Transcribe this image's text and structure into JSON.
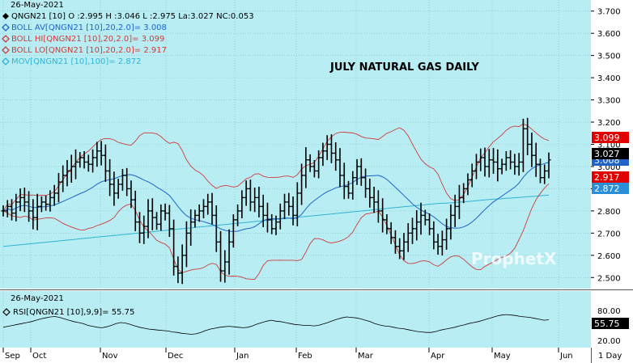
{
  "colors": {
    "background": "#b8eef3",
    "grid": "#7fbec6",
    "bars": "#000000",
    "boll_avg": "#1f63c9",
    "boll_bands": "#d03a3a",
    "mov100": "#2fb3d3",
    "rsi": "#000000",
    "tag_red": "#e00000",
    "tag_black": "#000000",
    "tag_blue": "#2a8fd8"
  },
  "header": {
    "date": "26-May-2021",
    "ohlc": "QNGN21 [10] O :2.995 H :3.046 L :2.975 La:3.027 NC:0.053",
    "boll_av": "BOLL AV[QNGN21 [10],20,2.0]= 3.008",
    "boll_hi": "BOLL HI[QNGN21 [10],20,2.0]= 3.099",
    "boll_lo": "BOLL LO[QNGN21 [10],20,2.0]= 2.917",
    "mov": "MOV[QNGN21 [10],100]= 2.872"
  },
  "chart_title": "JULY NATURAL GAS DAILY",
  "watermark": "ProphetX",
  "price_axis": [
    "3.700",
    "3.600",
    "3.500",
    "3.400",
    "3.300",
    "3.200",
    "3.100",
    "3.000",
    "2.900",
    "2.800",
    "2.700",
    "2.600",
    "2.500"
  ],
  "tags": {
    "boll_hi": "3.099",
    "last": "3.027",
    "boll_av": "3.008",
    "boll_lo": "2.917",
    "mov": "2.872"
  },
  "rsi_panel": {
    "date": "26-May-2021",
    "label": "RSI[QNGN21 [10],9,9]= 55.75",
    "axis": [
      "80.00",
      "20.00"
    ],
    "tag": "55.75"
  },
  "x_axis": {
    "months": [
      "Sep",
      "Oct",
      "Nov",
      "Dec",
      "Jan",
      "Feb",
      "Mar",
      "Apr",
      "May",
      "Jun"
    ],
    "interval": "1 Day"
  },
  "chart_data": {
    "type": "ohlc",
    "symbol": "QNGN21",
    "ylim": [
      2.45,
      3.75
    ],
    "rsi_ylim": [
      0,
      100
    ],
    "close": [
      2.8,
      2.82,
      2.79,
      2.84,
      2.86,
      2.84,
      2.8,
      2.77,
      2.82,
      2.84,
      2.83,
      2.86,
      2.88,
      2.93,
      2.96,
      2.98,
      3.0,
      3.02,
      3.04,
      3.02,
      3.01,
      3.04,
      3.07,
      3.05,
      2.98,
      2.92,
      2.88,
      2.92,
      2.96,
      2.9,
      2.85,
      2.75,
      2.7,
      2.73,
      2.8,
      2.77,
      2.74,
      2.8,
      2.79,
      2.72,
      2.55,
      2.52,
      2.6,
      2.7,
      2.75,
      2.78,
      2.8,
      2.82,
      2.84,
      2.78,
      2.66,
      2.53,
      2.57,
      2.66,
      2.76,
      2.8,
      2.86,
      2.9,
      2.84,
      2.86,
      2.82,
      2.78,
      2.76,
      2.72,
      2.75,
      2.8,
      2.84,
      2.82,
      2.78,
      2.88,
      2.96,
      3.03,
      3.0,
      2.98,
      3.04,
      3.07,
      3.1,
      3.06,
      3.03,
      2.96,
      2.91,
      2.88,
      2.95,
      3.0,
      2.95,
      2.9,
      2.86,
      2.84,
      2.8,
      2.76,
      2.72,
      2.68,
      2.64,
      2.62,
      2.66,
      2.7,
      2.72,
      2.75,
      2.78,
      2.76,
      2.72,
      2.66,
      2.64,
      2.67,
      2.72,
      2.78,
      2.82,
      2.86,
      2.9,
      2.94,
      2.98,
      3.02,
      3.04,
      3.0,
      3.03,
      3.02,
      2.99,
      3.01,
      3.04,
      3.02,
      3.0,
      3.02,
      3.17,
      3.1,
      3.05,
      3.01,
      2.95,
      2.98,
      3.03
    ],
    "rsi": [
      40,
      42,
      44,
      46,
      48,
      50,
      52,
      55,
      58,
      60,
      62,
      63,
      61,
      58,
      55,
      52,
      50,
      48,
      44,
      42,
      40,
      39,
      41,
      44,
      48,
      50,
      49,
      46,
      43,
      40,
      38,
      36,
      35,
      34,
      33,
      32,
      30,
      29,
      27,
      26,
      25,
      26,
      29,
      33,
      36,
      38,
      40,
      41,
      42,
      41,
      40,
      39,
      40,
      43,
      47,
      50,
      53,
      55,
      53,
      52,
      50,
      48,
      46,
      45,
      44,
      44,
      43,
      44,
      47,
      50,
      54,
      57,
      60,
      62,
      61,
      60,
      58,
      55,
      52,
      48,
      45,
      43,
      42,
      40,
      38,
      37,
      35,
      33,
      31,
      30,
      29,
      29,
      31,
      34,
      36,
      38,
      40,
      43,
      45,
      48,
      50,
      52,
      55,
      58,
      61,
      64,
      66,
      67,
      66,
      65,
      63,
      62,
      61,
      59,
      57,
      55,
      56
    ]
  }
}
